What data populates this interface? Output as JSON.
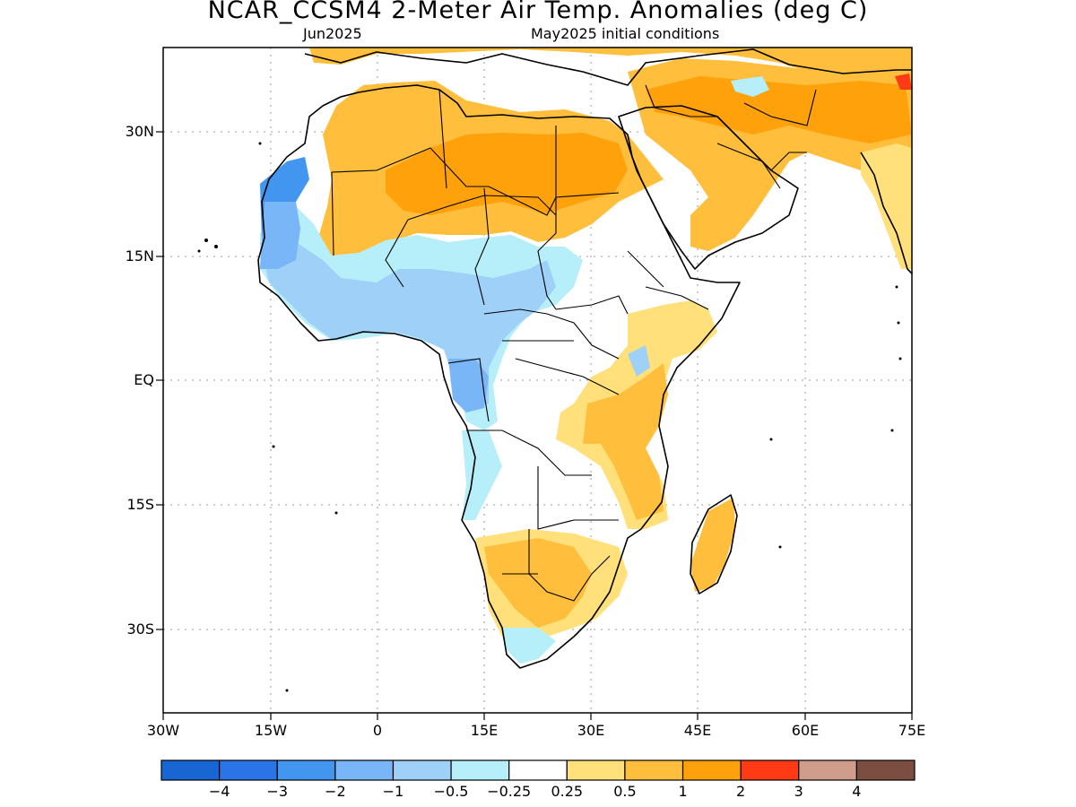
{
  "title": "NCAR_CCSM4 2-Meter Air Temp. Anomalies (deg C)",
  "subtitle_left": "Jun2025",
  "subtitle_right": "May2025 initial conditions",
  "lat_ticks": [
    "30N",
    "15N",
    "EQ",
    "15S",
    "30S"
  ],
  "lon_ticks": [
    "30W",
    "15W",
    "0",
    "15E",
    "30E",
    "45E",
    "60E",
    "75E"
  ],
  "colorbar": {
    "colors": [
      "#1865d4",
      "#2a74e8",
      "#4296f0",
      "#78b6f7",
      "#9ed0f8",
      "#b6eef9",
      "#ffffff",
      "#ffe07a",
      "#ffbe3b",
      "#ffa10a",
      "#ff3a14",
      "#d09d8d",
      "#7c4e42"
    ],
    "labels": [
      "−4",
      "−3",
      "−2",
      "−1",
      "−0.5",
      "−0.25",
      "0.25",
      "0.5",
      "1",
      "2",
      "3",
      "4"
    ]
  },
  "map_colors": {
    "land_outline": "#000000",
    "grid": "#9a9a9a"
  }
}
